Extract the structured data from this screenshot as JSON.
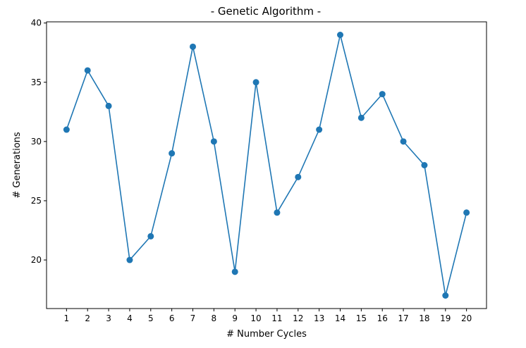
{
  "chart_data": {
    "type": "line",
    "title": "- Genetic Algorithm -",
    "xlabel": "# Number Cycles",
    "ylabel": "# Generations",
    "x": [
      1,
      2,
      3,
      4,
      5,
      6,
      7,
      8,
      9,
      10,
      11,
      12,
      13,
      14,
      15,
      16,
      17,
      18,
      19,
      20
    ],
    "series": [
      {
        "name": "generations",
        "values": [
          31,
          36,
          33,
          20,
          22,
          29,
          38,
          30,
          19,
          35,
          24,
          27,
          31,
          39,
          32,
          34,
          30,
          28,
          17,
          24
        ]
      }
    ],
    "xlim": [
      0.05,
      20.95
    ],
    "ylim": [
      15.9,
      40.1
    ],
    "xticks": [
      1,
      2,
      3,
      4,
      5,
      6,
      7,
      8,
      9,
      10,
      11,
      12,
      13,
      14,
      15,
      16,
      17,
      18,
      19,
      20
    ],
    "yticks": [
      20,
      25,
      30,
      35,
      40
    ],
    "grid": false,
    "line_color": "#1f77b4",
    "marker": "circle"
  }
}
